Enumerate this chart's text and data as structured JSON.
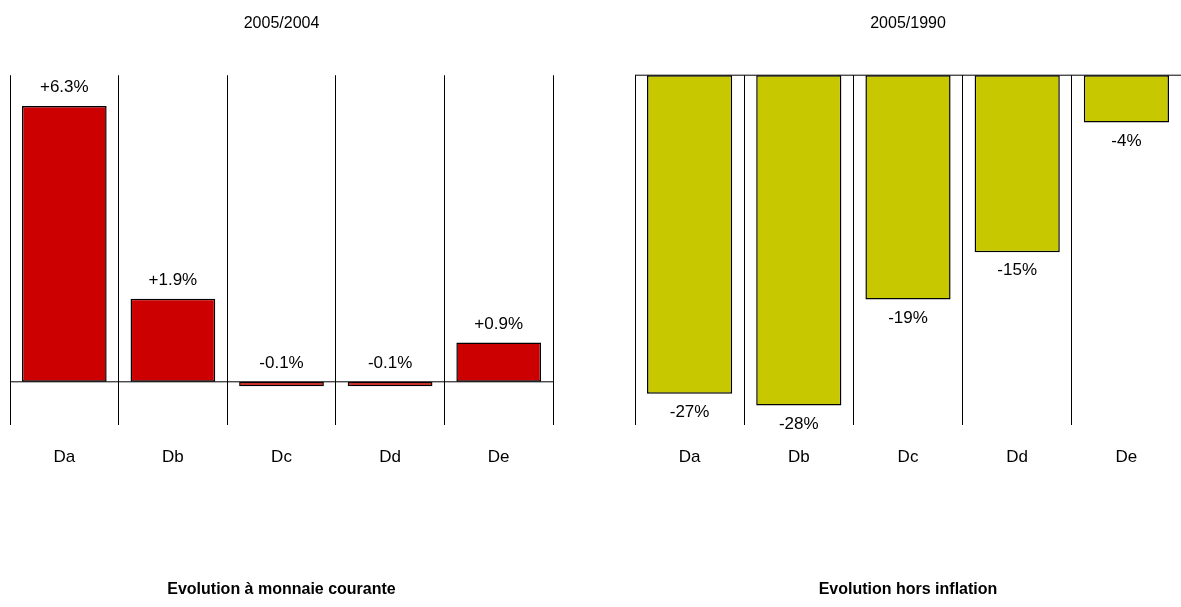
{
  "chart_data": [
    {
      "type": "bar",
      "title": "2005/2004",
      "xlabel": "Evolution à monnaie courante",
      "categories": [
        "Da",
        "Db",
        "Dc",
        "Dd",
        "De"
      ],
      "values": [
        6.3,
        1.9,
        -0.1,
        -0.1,
        0.9
      ],
      "value_labels": [
        "+6.3%",
        "+1.9%",
        "-0.1%",
        "-0.1%",
        "+0.9%"
      ],
      "colors": [
        "#cc0000",
        "#cc0000",
        "#cc0000",
        "#cc0000",
        "#cc0000"
      ],
      "grid": "x"
    },
    {
      "type": "bar",
      "title": "2005/1990",
      "xlabel": "Evolution hors inflation",
      "categories": [
        "Da",
        "Db",
        "Dc",
        "Dd",
        "De"
      ],
      "values": [
        -27,
        -28,
        -19,
        -15,
        -4
      ],
      "value_labels": [
        "-27%",
        "-28%",
        "-19%",
        "-15%",
        "-4%"
      ],
      "colors": [
        "#c8c800",
        "#c8c800",
        "#c8c800",
        "#c8c800",
        "#c8c800"
      ],
      "grid": "x"
    }
  ]
}
